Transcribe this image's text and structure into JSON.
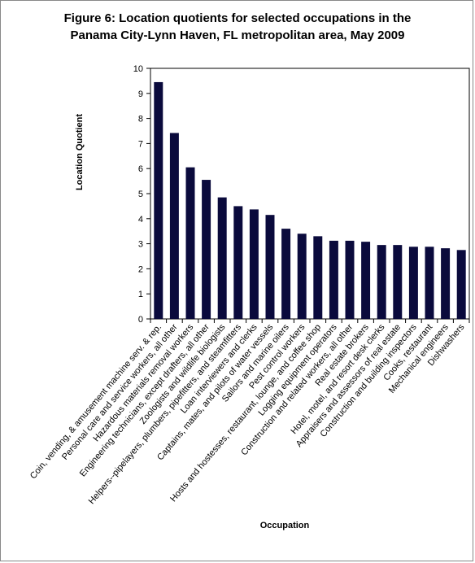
{
  "chart_data": {
    "type": "bar",
    "title_line1": "Figure 6:  Location quotients for selected occupations in the",
    "title_line2": "Panama City-Lynn Haven, FL metropolitan area, May 2009",
    "xlabel": "Occupation",
    "ylabel": "Location Quotient",
    "ylim": [
      0,
      10
    ],
    "yticks": [
      0,
      1,
      2,
      3,
      4,
      5,
      6,
      7,
      8,
      9,
      10
    ],
    "grid": false,
    "bar_color": "#0a0a3c",
    "categories": [
      "Coin, vending, & amusement machine serv. & rep.",
      "Personal care and service workers, all other",
      "Hazardous materials removal workers",
      "Engineering technicians, except drafters, all other",
      "Zoologists and wildlife biologists",
      "Helpers--pipelayers, plumbers, pipefitters, and steamfitters",
      "Loan interviewers and clerks",
      "Captains, mates, and pilots of water vessels",
      "Sailors and marine oilers",
      "Pest control workers",
      "Hosts and hostesses, restaurant, lounge, and coffee shop",
      "Logging equipment operators",
      "Construction and related workers, all other",
      "Real estate brokers",
      "Hotel, motel, and resort desk clerks",
      "Appraisers and assessors of real estate",
      "Construction and building inspectors",
      "Cooks, restaurant",
      "Mechanical engineers",
      "Dishwashers"
    ],
    "values": [
      9.45,
      7.42,
      6.05,
      5.55,
      4.85,
      4.5,
      4.37,
      4.15,
      3.6,
      3.4,
      3.3,
      3.12,
      3.12,
      3.08,
      2.95,
      2.95,
      2.88,
      2.88,
      2.82,
      2.75
    ]
  }
}
